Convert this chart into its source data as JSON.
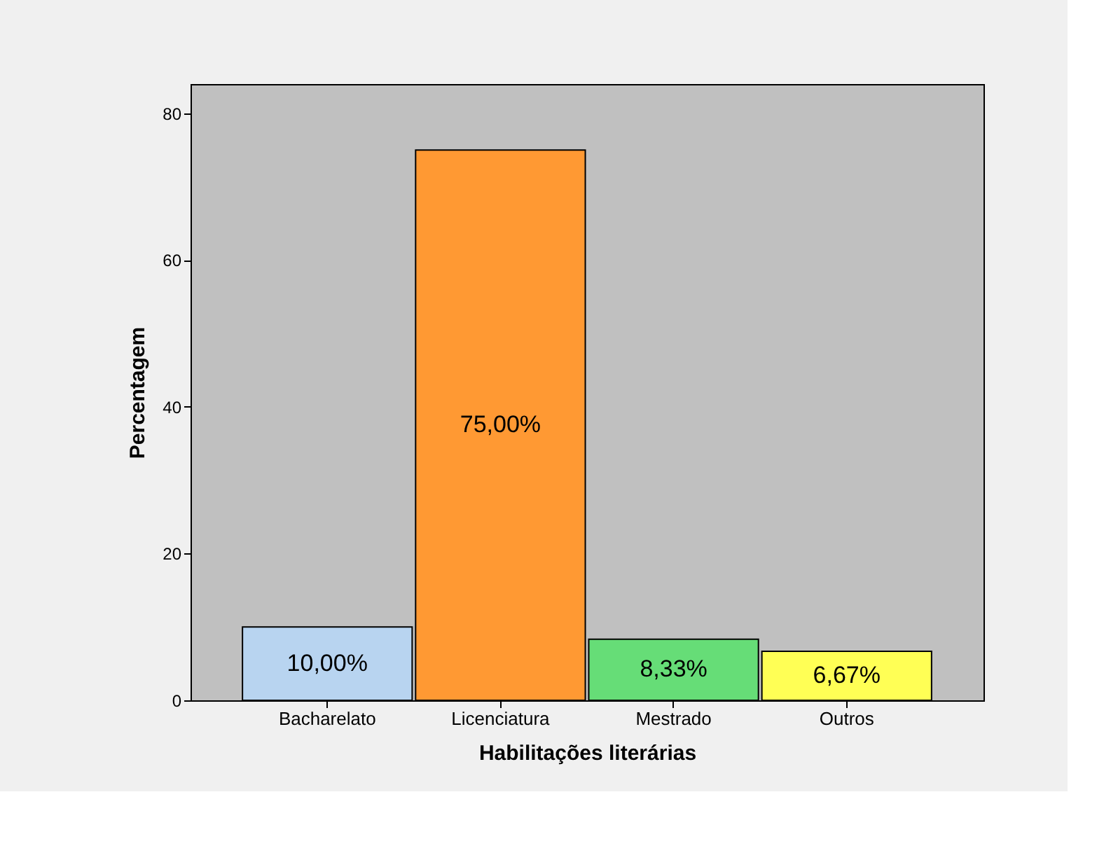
{
  "chart_data": {
    "type": "bar",
    "xlabel": "Habilitações literárias",
    "ylabel": "Percentagem",
    "categories": [
      "Bacharelato",
      "Licenciatura",
      "Mestrado",
      "Outros"
    ],
    "values": [
      10.0,
      75.0,
      8.33,
      6.67
    ],
    "colors": [
      "#b8d4f0",
      "#ff9933",
      "#66dd77",
      "#ffff55"
    ],
    "value_labels": [
      "10,00%",
      "75,00%",
      "8,33%",
      "6,67%"
    ],
    "ylim": [
      0,
      84
    ],
    "yticks": [
      0,
      20,
      40,
      60,
      80
    ],
    "grid": false,
    "legend": false
  }
}
